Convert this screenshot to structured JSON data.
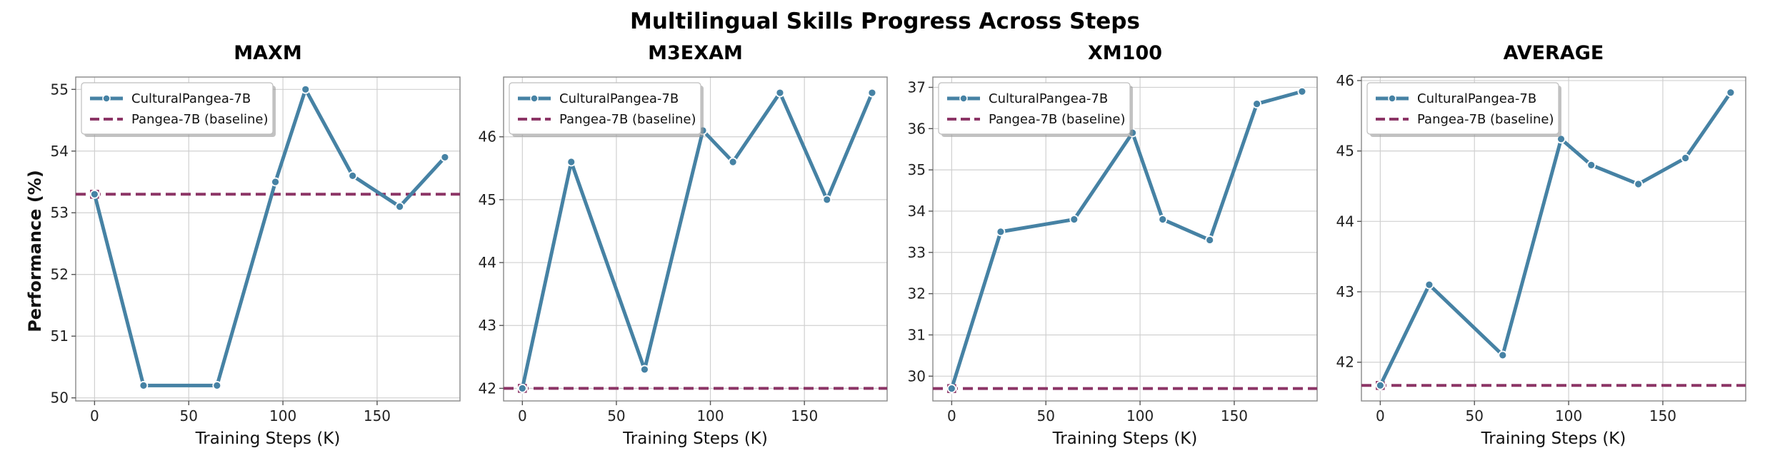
{
  "title": "Multilingual Skills Progress Across Steps",
  "ylabel": "Performance (%)",
  "colors": {
    "series": "#4682a4",
    "baseline": "#8c3566",
    "grid": "#d0d0d0"
  },
  "legend": {
    "placement": "upper-left",
    "series_name": "CulturalPangea-7B",
    "baseline_name": "Pangea-7B (baseline)"
  },
  "chart_data": [
    {
      "type": "line",
      "title": "MAXM",
      "xlabel": "Training Steps (K)",
      "x": [
        0,
        26,
        65,
        96,
        112,
        137,
        162,
        186
      ],
      "series": [
        {
          "name": "CulturalPangea-7B",
          "values": [
            53.3,
            50.2,
            50.2,
            53.5,
            55.0,
            53.6,
            53.1,
            53.9
          ]
        }
      ],
      "baseline": {
        "name": "Pangea-7B (baseline)",
        "value": 53.3
      },
      "xlim": [
        -10,
        194
      ],
      "ylim": [
        49.95,
        55.2
      ],
      "xticks": [
        0,
        50,
        100,
        150
      ],
      "yticks": [
        50,
        51,
        52,
        53,
        54,
        55
      ],
      "grid": true
    },
    {
      "type": "line",
      "title": "M3EXAM",
      "xlabel": "Training Steps (K)",
      "x": [
        0,
        26,
        65,
        96,
        112,
        137,
        162,
        186
      ],
      "series": [
        {
          "name": "CulturalPangea-7B",
          "values": [
            42.0,
            45.6,
            42.3,
            46.1,
            45.6,
            46.7,
            45.0,
            46.7
          ]
        }
      ],
      "baseline": {
        "name": "Pangea-7B (baseline)",
        "value": 42.0
      },
      "xlim": [
        -10,
        194
      ],
      "ylim": [
        41.8,
        46.95
      ],
      "xticks": [
        0,
        50,
        100,
        150
      ],
      "yticks": [
        42,
        43,
        44,
        45,
        46
      ],
      "grid": true
    },
    {
      "type": "line",
      "title": "XM100",
      "xlabel": "Training Steps (K)",
      "x": [
        0,
        26,
        65,
        96,
        112,
        137,
        162,
        186
      ],
      "series": [
        {
          "name": "CulturalPangea-7B",
          "values": [
            29.7,
            33.5,
            33.8,
            35.9,
            33.8,
            33.3,
            36.6,
            36.9
          ]
        }
      ],
      "baseline": {
        "name": "Pangea-7B (baseline)",
        "value": 29.7
      },
      "xlim": [
        -10,
        194
      ],
      "ylim": [
        29.4,
        37.25
      ],
      "xticks": [
        0,
        50,
        100,
        150
      ],
      "yticks": [
        30,
        31,
        32,
        33,
        34,
        35,
        36,
        37
      ],
      "grid": true
    },
    {
      "type": "line",
      "title": "AVERAGE",
      "xlabel": "Training Steps (K)",
      "x": [
        0,
        26,
        65,
        96,
        112,
        137,
        162,
        186
      ],
      "series": [
        {
          "name": "CulturalPangea-7B",
          "values": [
            41.67,
            43.1,
            42.1,
            45.17,
            44.8,
            44.53,
            44.9,
            45.83
          ]
        }
      ],
      "baseline": {
        "name": "Pangea-7B (baseline)",
        "value": 41.67
      },
      "xlim": [
        -10,
        194
      ],
      "ylim": [
        41.45,
        46.05
      ],
      "xticks": [
        0,
        50,
        100,
        150
      ],
      "yticks": [
        42,
        43,
        44,
        45,
        46
      ],
      "grid": true
    }
  ]
}
